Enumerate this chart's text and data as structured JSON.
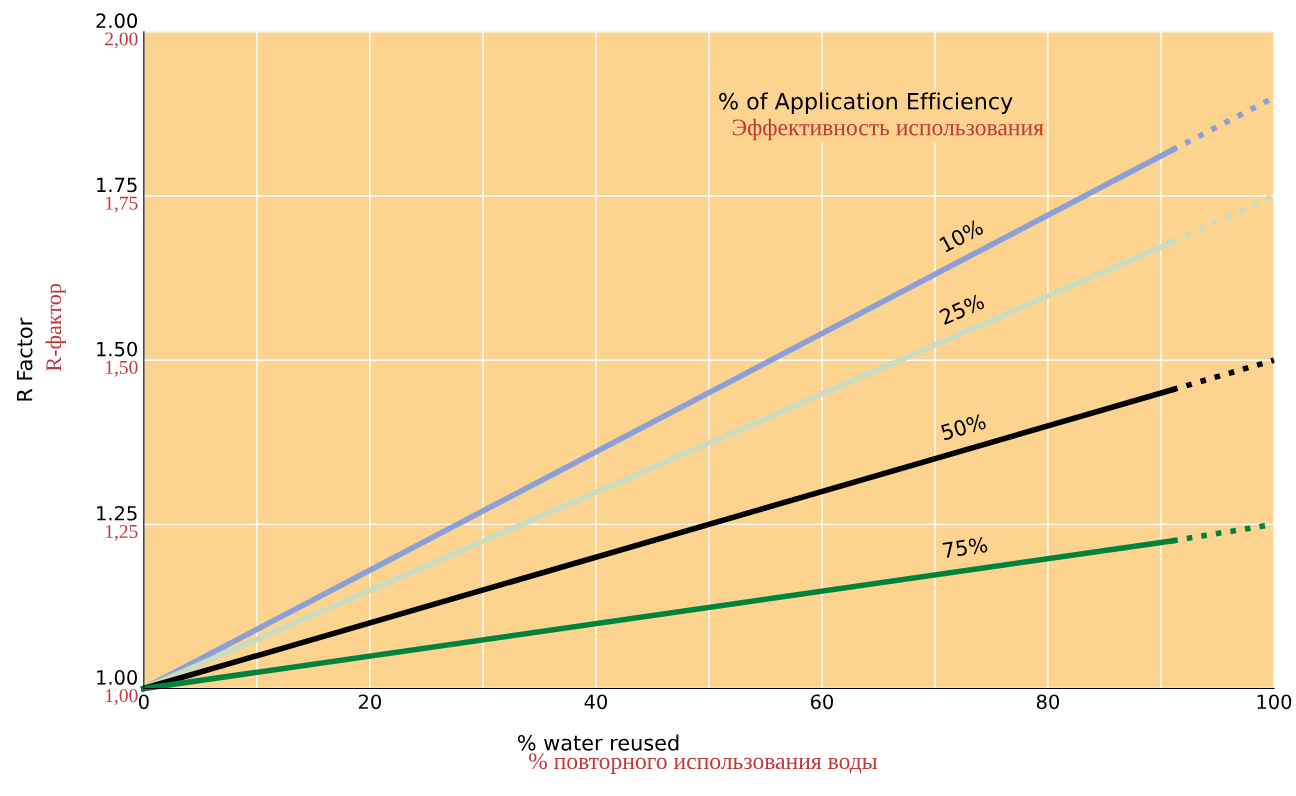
{
  "chart_data": {
    "type": "line",
    "xlabel": "% water reused",
    "ylabel": "R Factor",
    "xlim": [
      0,
      100
    ],
    "xticks": [
      0,
      {
        "value": 10,
        "label": null
      },
      20,
      {
        "value": 30,
        "label": null
      },
      40,
      {
        "value": 50,
        "label": null
      },
      60,
      {
        "value": 70,
        "label": null
      },
      80,
      {
        "value": 90,
        "label": null
      },
      100
    ],
    "ylim": [
      1.0,
      2.0
    ],
    "yticks": [
      {
        "value": 1.0,
        "label": "1.00"
      },
      1.25,
      {
        "value": 1.5,
        "label": "1.50"
      },
      1.75,
      {
        "value": 2.0,
        "label": "2.00"
      }
    ],
    "y2lim": [
      1.0,
      2.0
    ],
    "y2ticks": [
      {
        "value": 1.0,
        "label": "1,00"
      },
      {
        "value": 1.25,
        "label": "1,25"
      },
      {
        "value": 1.5,
        "label": "1,50"
      },
      {
        "value": 1.75,
        "label": "1,75"
      },
      {
        "value": 2.0,
        "label": "2,00"
      }
    ],
    "grid": true,
    "legend": false,
    "marker": "none",
    "series": [
      {
        "name": "10%",
        "color": "#8b9fd9",
        "x": [
          0,
          91
        ],
        "values": [
          1.0,
          1.82
        ],
        "line_style": "solid"
      },
      {
        "color": "#8b9fd9",
        "x": [
          91,
          100
        ],
        "values": [
          1.82,
          1.9
        ],
        "line_style": "dotted"
      },
      {
        "name": "25%",
        "color": "#c9dcc0",
        "x": [
          0,
          91
        ],
        "values": [
          1.0,
          1.68
        ],
        "line_style": "solid"
      },
      {
        "color": "#c9dcc0",
        "x": [
          91,
          100
        ],
        "values": [
          1.68,
          1.75
        ],
        "line_style": "dotted"
      },
      {
        "name": "50%",
        "color": "#000000",
        "x": [
          0,
          91
        ],
        "values": [
          1.0,
          1.455
        ],
        "line_style": "solid"
      },
      {
        "color": "#000000",
        "x": [
          91,
          100
        ],
        "values": [
          1.455,
          1.5
        ],
        "line_style": "dotted"
      },
      {
        "name": "75%",
        "color": "#00843d",
        "x": [
          0,
          91
        ],
        "values": [
          1.0,
          1.225
        ],
        "line_style": "solid"
      },
      {
        "color": "#00843d",
        "x": [
          91,
          100
        ],
        "values": [
          1.225,
          1.25
        ],
        "line_style": "dotted"
      }
    ],
    "annotations": [
      "% of Application Efficiency",
      "Эффективность использования",
      "% повторного использования воды",
      "R-фактор"
    ]
  }
}
